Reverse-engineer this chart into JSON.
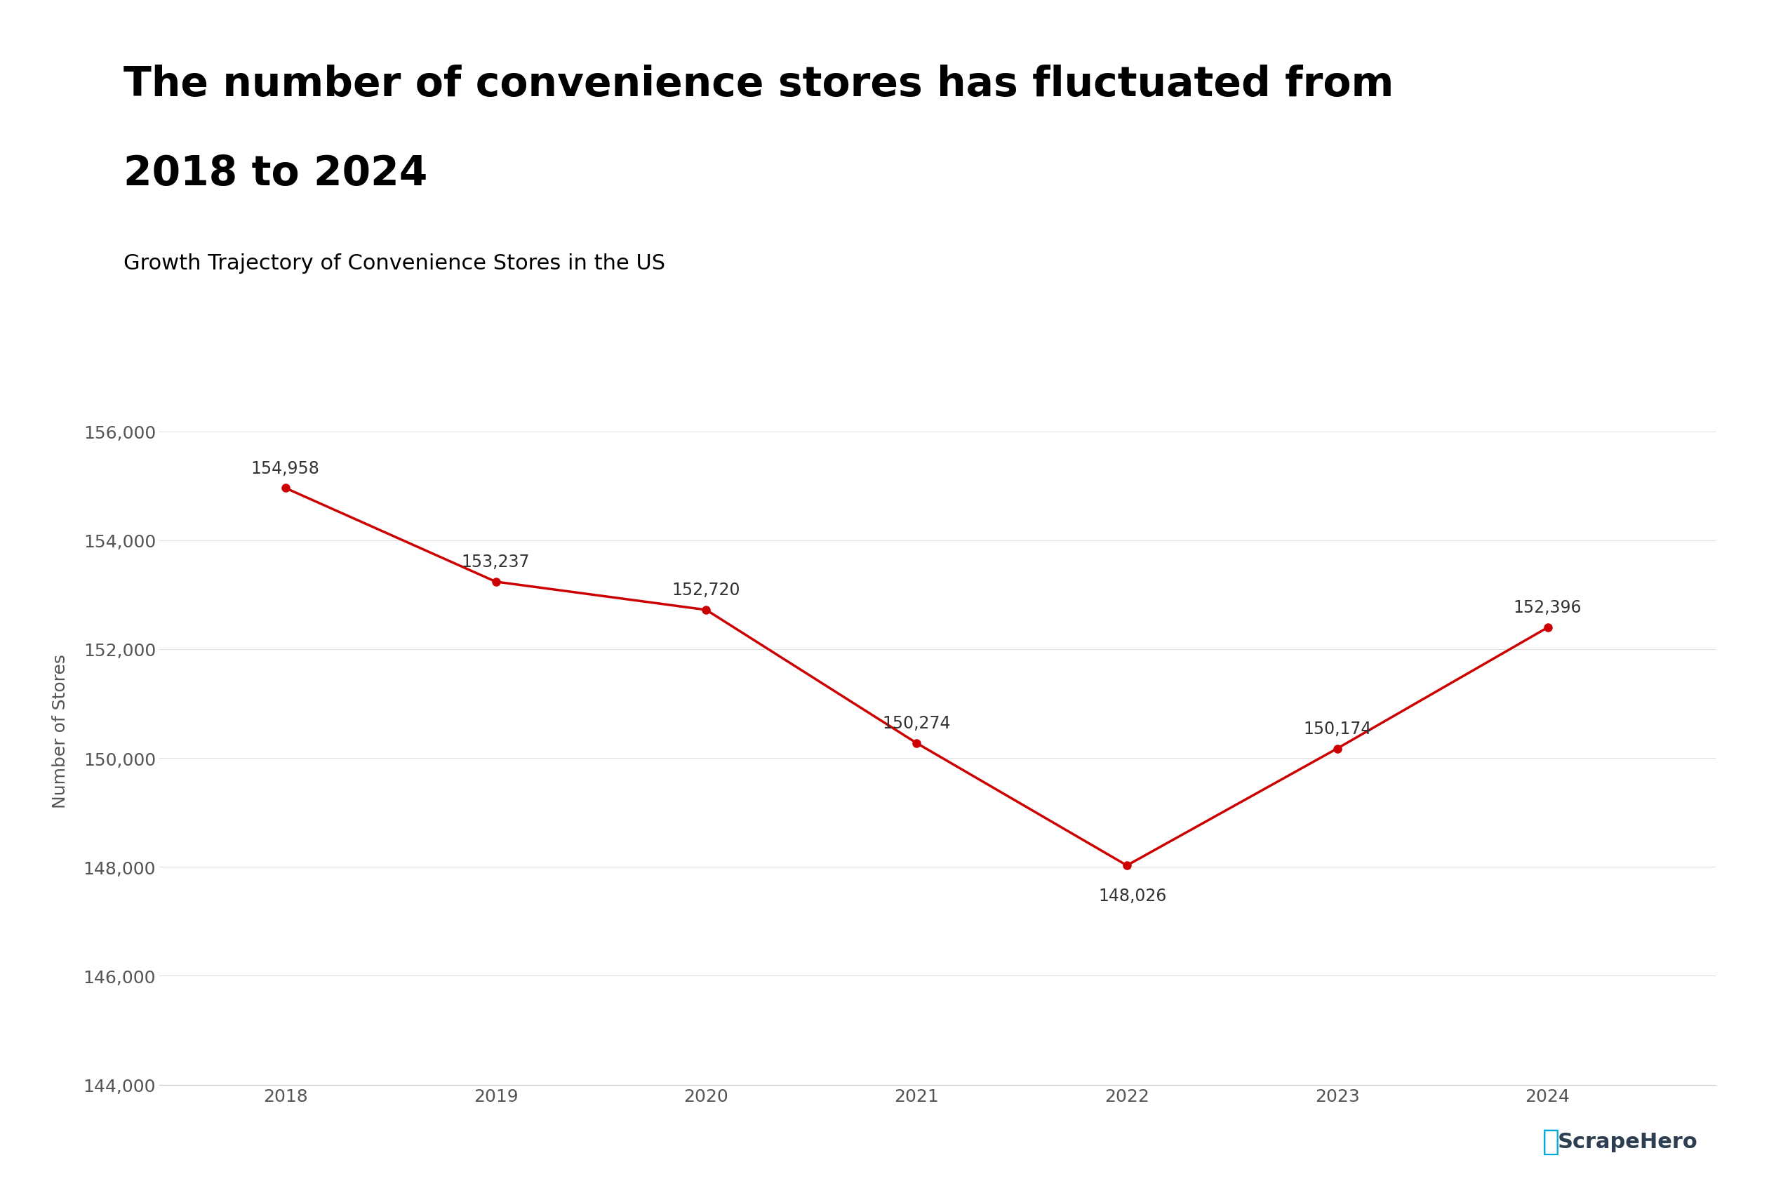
{
  "title_line1": "The number of convenience stores has fluctuated from",
  "title_line2": "2018 to 2024",
  "subtitle": "Growth Trajectory of Convenience Stores in the US",
  "years": [
    2018,
    2019,
    2020,
    2021,
    2022,
    2023,
    2024
  ],
  "values": [
    154958,
    153237,
    152720,
    150274,
    148026,
    150174,
    152396
  ],
  "line_color": "#cc0000",
  "marker_color": "#cc0000",
  "ylabel": "Number of Stores",
  "ylim_min": 144000,
  "ylim_max": 157000,
  "ytick_step": 2000,
  "background_color": "#ffffff",
  "title_fontsize": 42,
  "subtitle_fontsize": 22,
  "tick_fontsize": 18,
  "ylabel_fontsize": 18,
  "annotation_fontsize": 17,
  "watermark_text": "ScrapeHero",
  "watermark_color": "#2d3e50",
  "watermark_icon_color": "#00aadd",
  "title_color": "#000000",
  "subtitle_color": "#000000",
  "axis_label_color": "#555555",
  "tick_color": "#555555",
  "annotation_color": "#333333",
  "grid_color": "#e0e0e0",
  "spine_color": "#cccccc"
}
